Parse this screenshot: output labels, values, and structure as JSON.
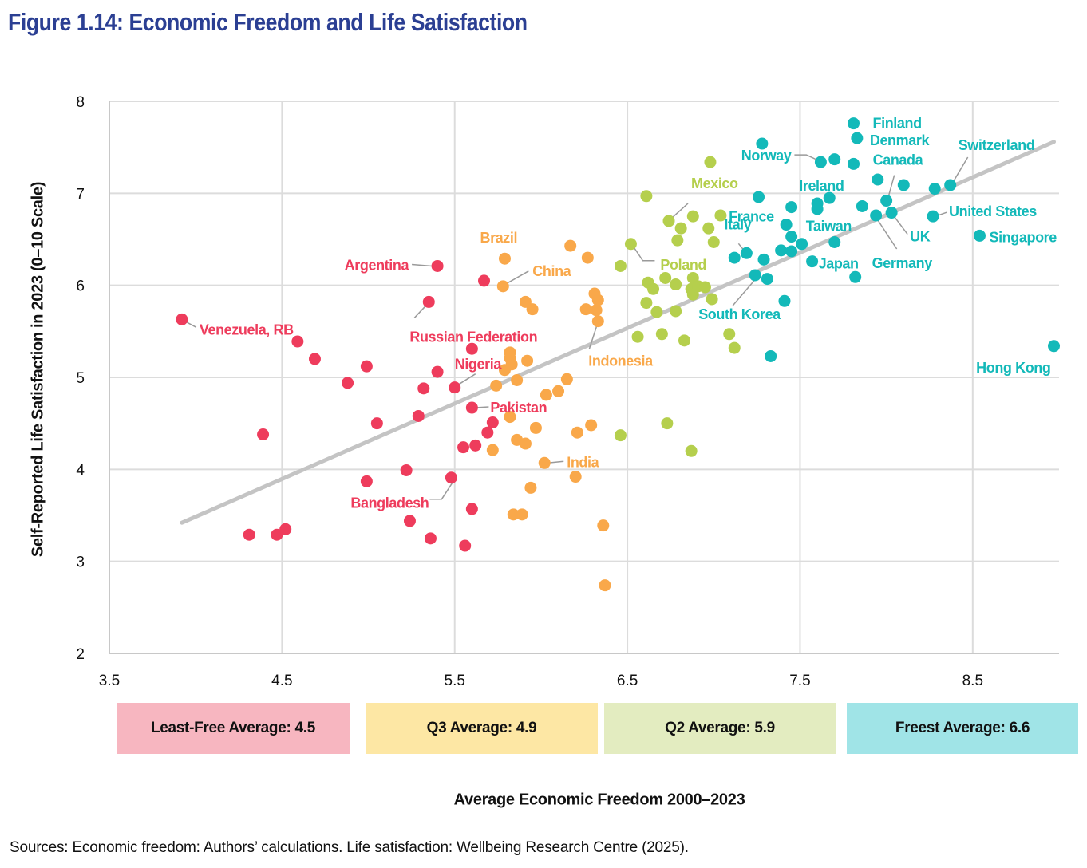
{
  "header": {
    "title": "Figure 1.14: Economic Freedom and Life Satisfaction"
  },
  "footer": {
    "sources": "Sources: Economic freedom: Authors’ calculations. Life satisfaction: Wellbeing Research Centre (2025)."
  },
  "averages": [
    {
      "label": "Least-Free Average: 4.5",
      "color": "#f7b6c0"
    },
    {
      "label": "Q3 Average: 4.9",
      "color": "#fde7a4"
    },
    {
      "label": "Q2 Average: 5.9",
      "color": "#e3ecc0"
    },
    {
      "label": "Freest Average: 6.6",
      "color": "#a0e4e7"
    }
  ],
  "chart_data": {
    "type": "scatter",
    "title": "Figure 1.14: Economic Freedom and Life Satisfaction",
    "xlabel": "Average Economic Freedom 2000–2023",
    "ylabel": "Self-Reported Life Satisfaction in 2023 (0–10 Scale)",
    "xlim": [
      3.5,
      9.0
    ],
    "ylim": [
      2,
      8
    ],
    "xticks": [
      "3.5",
      "4.5",
      "5.5",
      "6.5",
      "7.5",
      "8.5"
    ],
    "yticks": [
      "2",
      "3",
      "4",
      "5",
      "6",
      "7",
      "8"
    ],
    "grid": true,
    "trendline": {
      "x": [
        3.92,
        8.97
      ],
      "y": [
        3.42,
        7.56
      ],
      "color": "#c4c4c4"
    },
    "series": [
      {
        "name": "Least-Free",
        "color": "#ee3c5c",
        "points": [
          {
            "x": 3.92,
            "y": 5.63,
            "label": "Venezuela, RB"
          },
          {
            "x": 4.59,
            "y": 5.39
          },
          {
            "x": 4.69,
            "y": 5.2
          },
          {
            "x": 4.88,
            "y": 4.94
          },
          {
            "x": 4.99,
            "y": 5.12
          },
          {
            "x": 4.39,
            "y": 4.38
          },
          {
            "x": 5.05,
            "y": 4.5
          },
          {
            "x": 5.29,
            "y": 4.58
          },
          {
            "x": 5.32,
            "y": 4.88
          },
          {
            "x": 5.4,
            "y": 5.06
          },
          {
            "x": 5.4,
            "y": 6.21,
            "label": "Argentina"
          },
          {
            "x": 5.35,
            "y": 5.82,
            "label": "Russian Federation"
          },
          {
            "x": 5.67,
            "y": 6.05
          },
          {
            "x": 5.6,
            "y": 5.31
          },
          {
            "x": 5.5,
            "y": 4.89,
            "label": "Nigeria"
          },
          {
            "x": 5.6,
            "y": 4.67,
            "label": "Pakistan"
          },
          {
            "x": 5.72,
            "y": 4.51
          },
          {
            "x": 5.69,
            "y": 4.4
          },
          {
            "x": 5.55,
            "y": 4.24
          },
          {
            "x": 5.62,
            "y": 4.26
          },
          {
            "x": 5.48,
            "y": 3.91,
            "label": "Bangladesh"
          },
          {
            "x": 5.22,
            "y": 3.99
          },
          {
            "x": 4.99,
            "y": 3.87
          },
          {
            "x": 5.24,
            "y": 3.44
          },
          {
            "x": 5.6,
            "y": 3.57
          },
          {
            "x": 4.31,
            "y": 3.29
          },
          {
            "x": 4.47,
            "y": 3.29
          },
          {
            "x": 4.52,
            "y": 3.35
          },
          {
            "x": 5.36,
            "y": 3.25
          },
          {
            "x": 5.56,
            "y": 3.17
          }
        ]
      },
      {
        "name": "Q3",
        "color": "#f9a84a",
        "points": [
          {
            "x": 5.79,
            "y": 6.29,
            "label": "Brazil"
          },
          {
            "x": 5.78,
            "y": 5.99,
            "label": "China"
          },
          {
            "x": 6.17,
            "y": 6.43
          },
          {
            "x": 6.27,
            "y": 6.3
          },
          {
            "x": 5.91,
            "y": 5.82
          },
          {
            "x": 5.95,
            "y": 5.74
          },
          {
            "x": 6.31,
            "y": 5.91
          },
          {
            "x": 6.33,
            "y": 5.84
          },
          {
            "x": 6.26,
            "y": 5.74
          },
          {
            "x": 6.32,
            "y": 5.73
          },
          {
            "x": 6.33,
            "y": 5.61,
            "label": "Indonesia"
          },
          {
            "x": 5.82,
            "y": 5.27
          },
          {
            "x": 5.82,
            "y": 5.21
          },
          {
            "x": 5.83,
            "y": 5.14
          },
          {
            "x": 5.79,
            "y": 5.08
          },
          {
            "x": 5.92,
            "y": 5.18
          },
          {
            "x": 5.86,
            "y": 4.97
          },
          {
            "x": 5.74,
            "y": 4.91
          },
          {
            "x": 6.15,
            "y": 4.98
          },
          {
            "x": 6.1,
            "y": 4.85
          },
          {
            "x": 6.03,
            "y": 4.81
          },
          {
            "x": 5.82,
            "y": 4.57
          },
          {
            "x": 5.97,
            "y": 4.45
          },
          {
            "x": 6.29,
            "y": 4.48
          },
          {
            "x": 6.21,
            "y": 4.4
          },
          {
            "x": 5.86,
            "y": 4.32
          },
          {
            "x": 5.91,
            "y": 4.28
          },
          {
            "x": 5.72,
            "y": 4.21
          },
          {
            "x": 6.02,
            "y": 4.07,
            "label": "India"
          },
          {
            "x": 6.2,
            "y": 3.92
          },
          {
            "x": 5.94,
            "y": 3.8
          },
          {
            "x": 5.84,
            "y": 3.51
          },
          {
            "x": 5.89,
            "y": 3.51
          },
          {
            "x": 6.36,
            "y": 3.39
          },
          {
            "x": 6.37,
            "y": 2.74
          }
        ]
      },
      {
        "name": "Q2",
        "color": "#b5cf4d",
        "points": [
          {
            "x": 6.98,
            "y": 7.34
          },
          {
            "x": 6.61,
            "y": 6.97
          },
          {
            "x": 6.74,
            "y": 6.7,
            "label": "Mexico"
          },
          {
            "x": 6.88,
            "y": 6.75
          },
          {
            "x": 7.04,
            "y": 6.76
          },
          {
            "x": 6.81,
            "y": 6.62
          },
          {
            "x": 6.97,
            "y": 6.62
          },
          {
            "x": 6.79,
            "y": 6.49
          },
          {
            "x": 7.0,
            "y": 6.47
          },
          {
            "x": 6.52,
            "y": 6.45,
            "label": "Poland"
          },
          {
            "x": 6.46,
            "y": 6.21
          },
          {
            "x": 6.62,
            "y": 6.03
          },
          {
            "x": 6.72,
            "y": 6.08
          },
          {
            "x": 6.88,
            "y": 6.08
          },
          {
            "x": 6.65,
            "y": 5.96
          },
          {
            "x": 6.78,
            "y": 6.01
          },
          {
            "x": 6.87,
            "y": 5.96
          },
          {
            "x": 6.91,
            "y": 5.99
          },
          {
            "x": 6.95,
            "y": 5.98
          },
          {
            "x": 6.88,
            "y": 5.9
          },
          {
            "x": 6.61,
            "y": 5.81
          },
          {
            "x": 6.67,
            "y": 5.71
          },
          {
            "x": 6.78,
            "y": 5.72
          },
          {
            "x": 6.99,
            "y": 5.85
          },
          {
            "x": 6.56,
            "y": 5.44
          },
          {
            "x": 6.7,
            "y": 5.47
          },
          {
            "x": 6.83,
            "y": 5.4
          },
          {
            "x": 7.09,
            "y": 5.47
          },
          {
            "x": 7.12,
            "y": 5.32
          },
          {
            "x": 6.46,
            "y": 4.37
          },
          {
            "x": 6.73,
            "y": 4.5
          },
          {
            "x": 6.87,
            "y": 4.2
          }
        ]
      },
      {
        "name": "Freest",
        "color": "#13b9b9",
        "points": [
          {
            "x": 7.81,
            "y": 7.76,
            "label": "Finland"
          },
          {
            "x": 7.83,
            "y": 7.6,
            "label": "Denmark"
          },
          {
            "x": 7.28,
            "y": 7.54
          },
          {
            "x": 7.62,
            "y": 7.34,
            "label": "Norway"
          },
          {
            "x": 7.7,
            "y": 7.37
          },
          {
            "x": 7.81,
            "y": 7.32
          },
          {
            "x": 7.95,
            "y": 7.15
          },
          {
            "x": 8.1,
            "y": 7.09
          },
          {
            "x": 8.28,
            "y": 7.05
          },
          {
            "x": 8.37,
            "y": 7.09,
            "label": "Switzerland"
          },
          {
            "x": 7.26,
            "y": 6.96
          },
          {
            "x": 7.67,
            "y": 6.95,
            "label": "Ireland"
          },
          {
            "x": 7.6,
            "y": 6.89
          },
          {
            "x": 7.6,
            "y": 6.83
          },
          {
            "x": 7.45,
            "y": 6.85
          },
          {
            "x": 7.86,
            "y": 6.86
          },
          {
            "x": 8.0,
            "y": 6.92,
            "label": "Canada"
          },
          {
            "x": 7.94,
            "y": 6.76,
            "label": "Germany"
          },
          {
            "x": 8.03,
            "y": 6.79,
            "label": "UK"
          },
          {
            "x": 8.27,
            "y": 6.75,
            "label": "United States"
          },
          {
            "x": 7.42,
            "y": 6.66,
            "label": "France"
          },
          {
            "x": 7.45,
            "y": 6.53
          },
          {
            "x": 7.51,
            "y": 6.45
          },
          {
            "x": 7.45,
            "y": 6.37
          },
          {
            "x": 7.39,
            "y": 6.38
          },
          {
            "x": 7.7,
            "y": 6.47,
            "label": "Taiwan"
          },
          {
            "x": 7.12,
            "y": 6.3
          },
          {
            "x": 7.19,
            "y": 6.35,
            "label": "Italy"
          },
          {
            "x": 7.29,
            "y": 6.28
          },
          {
            "x": 7.57,
            "y": 6.26,
            "label": "Japan"
          },
          {
            "x": 7.24,
            "y": 6.11,
            "label": "South Korea"
          },
          {
            "x": 7.31,
            "y": 6.07
          },
          {
            "x": 7.82,
            "y": 6.09
          },
          {
            "x": 7.41,
            "y": 5.83
          },
          {
            "x": 7.33,
            "y": 5.23
          },
          {
            "x": 8.54,
            "y": 6.54,
            "label": "Singapore"
          },
          {
            "x": 8.97,
            "y": 5.34,
            "label": "Hong Kong"
          }
        ]
      }
    ],
    "annotations": [
      {
        "text": "Venezuela, RB",
        "series": "Least-Free",
        "x": 3.92,
        "y": 5.63
      },
      {
        "text": "Argentina",
        "series": "Least-Free",
        "x": 5.4,
        "y": 6.21
      },
      {
        "text": "Russian Federation",
        "series": "Least-Free",
        "x": 5.35,
        "y": 5.82
      },
      {
        "text": "Nigeria",
        "series": "Least-Free",
        "x": 5.5,
        "y": 4.89
      },
      {
        "text": "Pakistan",
        "series": "Least-Free",
        "x": 5.6,
        "y": 4.67
      },
      {
        "text": "Bangladesh",
        "series": "Least-Free",
        "x": 5.48,
        "y": 3.91
      },
      {
        "text": "Brazil",
        "series": "Q3",
        "x": 5.79,
        "y": 6.29
      },
      {
        "text": "China",
        "series": "Q3",
        "x": 5.78,
        "y": 5.99
      },
      {
        "text": "Indonesia",
        "series": "Q3",
        "x": 6.33,
        "y": 5.61
      },
      {
        "text": "India",
        "series": "Q3",
        "x": 6.02,
        "y": 4.07
      },
      {
        "text": "Mexico",
        "series": "Q2",
        "x": 6.74,
        "y": 6.7
      },
      {
        "text": "Poland",
        "series": "Q2",
        "x": 6.52,
        "y": 6.45
      },
      {
        "text": "Finland",
        "series": "Freest",
        "x": 7.81,
        "y": 7.76
      },
      {
        "text": "Denmark",
        "series": "Freest",
        "x": 7.83,
        "y": 7.6
      },
      {
        "text": "Norway",
        "series": "Freest",
        "x": 7.62,
        "y": 7.34
      },
      {
        "text": "Switzerland",
        "series": "Freest",
        "x": 8.37,
        "y": 7.09
      },
      {
        "text": "Canada",
        "series": "Freest",
        "x": 8.0,
        "y": 6.92
      },
      {
        "text": "Ireland",
        "series": "Freest",
        "x": 7.67,
        "y": 6.95
      },
      {
        "text": "France",
        "series": "Freest",
        "x": 7.42,
        "y": 6.66
      },
      {
        "text": "Italy",
        "series": "Freest",
        "x": 7.19,
        "y": 6.35
      },
      {
        "text": "Taiwan",
        "series": "Freest",
        "x": 7.7,
        "y": 6.47
      },
      {
        "text": "United States",
        "series": "Freest",
        "x": 8.27,
        "y": 6.75
      },
      {
        "text": "UK",
        "series": "Freest",
        "x": 8.03,
        "y": 6.79
      },
      {
        "text": "Germany",
        "series": "Freest",
        "x": 7.94,
        "y": 6.76
      },
      {
        "text": "Singapore",
        "series": "Freest",
        "x": 8.54,
        "y": 6.54
      },
      {
        "text": "Japan",
        "series": "Freest",
        "x": 7.57,
        "y": 6.26
      },
      {
        "text": "South Korea",
        "series": "Freest",
        "x": 7.24,
        "y": 6.11
      },
      {
        "text": "Hong Kong",
        "series": "Freest",
        "x": 8.97,
        "y": 5.34
      }
    ]
  }
}
